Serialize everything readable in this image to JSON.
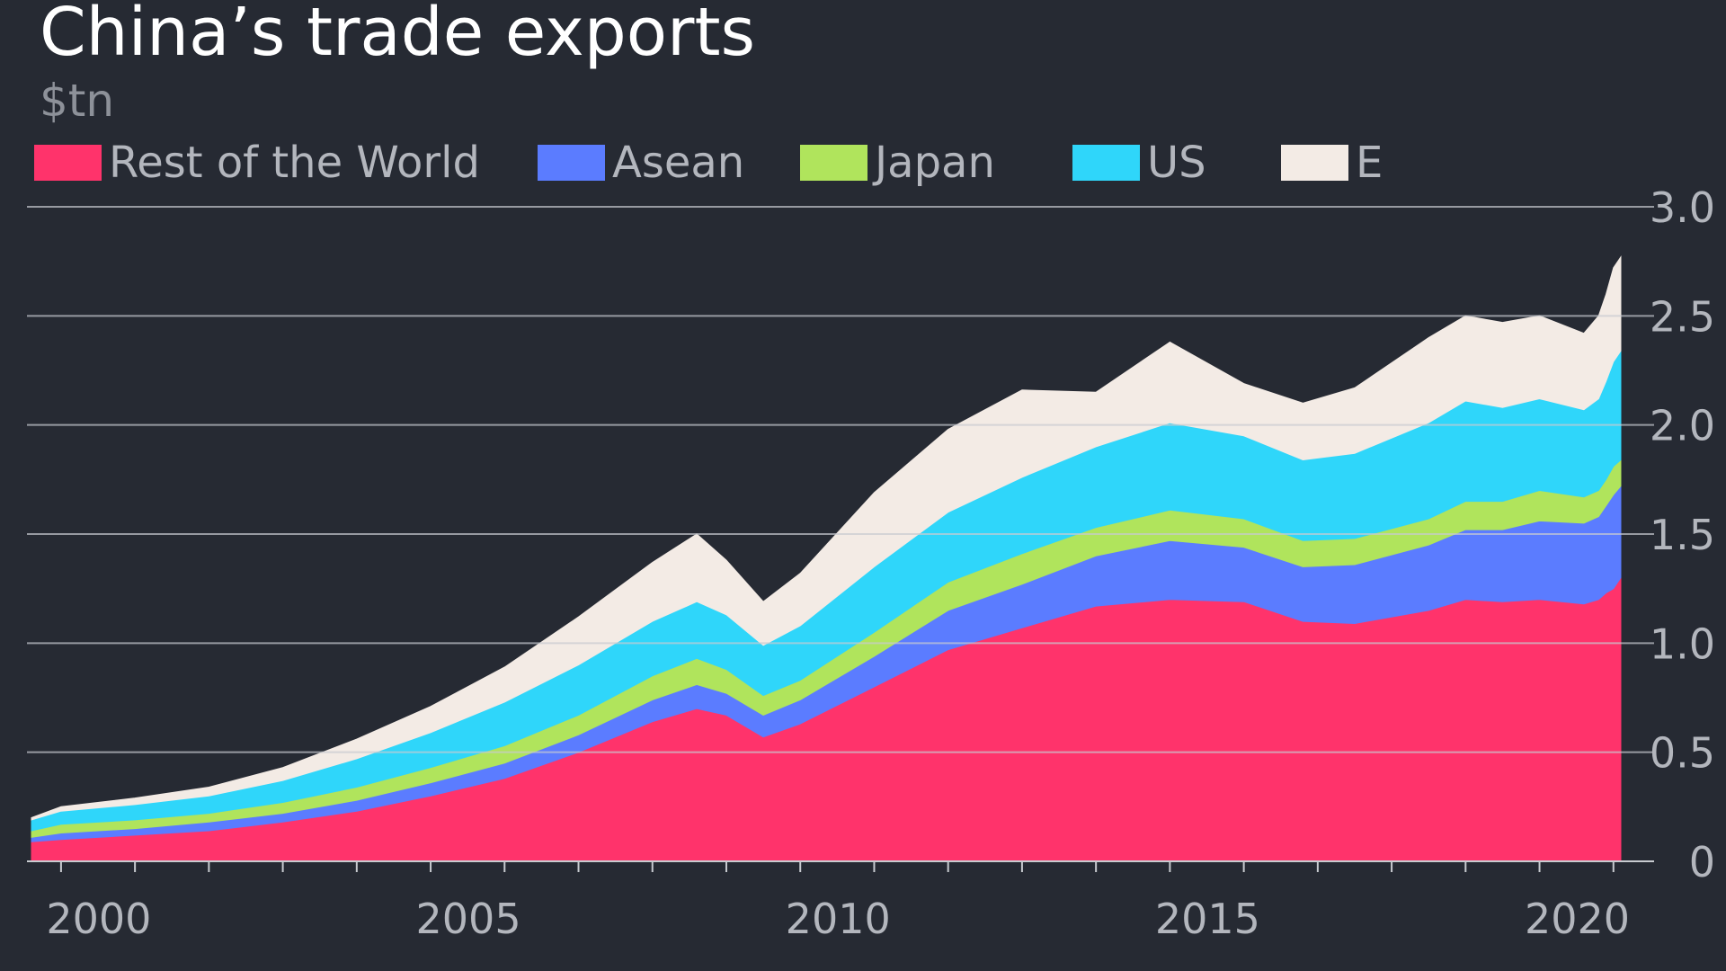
{
  "header": {
    "title": "China’s trade exports",
    "subtitle": "$tn"
  },
  "legend": [
    {
      "label": "Rest of the World",
      "color": "#ff336b"
    },
    {
      "label": "Asean",
      "color": "#5b7cff"
    },
    {
      "label": "Japan",
      "color": "#b0e45c"
    },
    {
      "label": "US",
      "color": "#2fd6fa"
    },
    {
      "label": "E",
      "color": "#f3ebe5"
    }
  ],
  "chart_data": {
    "type": "area",
    "stacked": true,
    "title": "China’s trade exports",
    "ylabel": "$tn",
    "xlim": [
      1999.6,
      2021.1
    ],
    "ylim": [
      0,
      3.0
    ],
    "y_ticks": [
      "3.0",
      "2.5",
      "2.0",
      "1.5",
      "1.0",
      "0.5",
      "0"
    ],
    "y_tick_values": [
      3.0,
      2.5,
      2.0,
      1.5,
      1.0,
      0.5,
      0
    ],
    "x_tick_labels": [
      "2000",
      "2005",
      "2010",
      "2015",
      "2020"
    ],
    "x_tick_values": [
      2000,
      2005,
      2010,
      2015,
      2020
    ],
    "grid": true,
    "legend_position": "top",
    "y_axis_position": "right",
    "x": [
      1999.6,
      2000.0,
      2001.0,
      2002.0,
      2003.0,
      2004.0,
      2005.0,
      2006.0,
      2007.0,
      2008.0,
      2008.6,
      2009.0,
      2009.5,
      2010.0,
      2011.0,
      2012.0,
      2013.0,
      2014.0,
      2015.0,
      2016.0,
      2016.8,
      2017.5,
      2018.5,
      2019.0,
      2019.5,
      2020.0,
      2020.6,
      2020.8,
      2020.9,
      2021.0,
      2021.1
    ],
    "series": [
      {
        "name": "Rest of the World",
        "values": [
          0.09,
          0.1,
          0.12,
          0.14,
          0.18,
          0.23,
          0.3,
          0.38,
          0.5,
          0.64,
          0.7,
          0.67,
          0.57,
          0.63,
          0.8,
          0.97,
          1.07,
          1.17,
          1.2,
          1.19,
          1.1,
          1.09,
          1.15,
          1.2,
          1.19,
          1.2,
          1.18,
          1.2,
          1.23,
          1.25,
          1.3
        ]
      },
      {
        "name": "Asean",
        "values": [
          0.02,
          0.03,
          0.03,
          0.04,
          0.04,
          0.05,
          0.06,
          0.07,
          0.08,
          0.1,
          0.11,
          0.1,
          0.1,
          0.11,
          0.14,
          0.18,
          0.2,
          0.23,
          0.27,
          0.25,
          0.25,
          0.27,
          0.3,
          0.32,
          0.33,
          0.36,
          0.37,
          0.38,
          0.4,
          0.43,
          0.42
        ]
      },
      {
        "name": "Japan",
        "values": [
          0.03,
          0.04,
          0.04,
          0.04,
          0.05,
          0.06,
          0.07,
          0.08,
          0.09,
          0.11,
          0.12,
          0.11,
          0.09,
          0.09,
          0.11,
          0.13,
          0.14,
          0.13,
          0.14,
          0.13,
          0.12,
          0.12,
          0.12,
          0.13,
          0.13,
          0.14,
          0.12,
          0.12,
          0.12,
          0.13,
          0.12
        ]
      },
      {
        "name": "US",
        "values": [
          0.05,
          0.06,
          0.07,
          0.08,
          0.1,
          0.13,
          0.16,
          0.2,
          0.23,
          0.25,
          0.26,
          0.25,
          0.23,
          0.25,
          0.3,
          0.32,
          0.35,
          0.37,
          0.4,
          0.38,
          0.37,
          0.39,
          0.44,
          0.46,
          0.43,
          0.42,
          0.4,
          0.42,
          0.45,
          0.48,
          0.5
        ]
      },
      {
        "name": "E",
        "values": [
          0.01,
          0.02,
          0.03,
          0.04,
          0.06,
          0.09,
          0.12,
          0.16,
          0.22,
          0.27,
          0.31,
          0.25,
          0.2,
          0.24,
          0.34,
          0.38,
          0.4,
          0.25,
          0.37,
          0.24,
          0.26,
          0.3,
          0.39,
          0.39,
          0.39,
          0.38,
          0.35,
          0.38,
          0.4,
          0.43,
          0.43
        ]
      }
    ]
  }
}
